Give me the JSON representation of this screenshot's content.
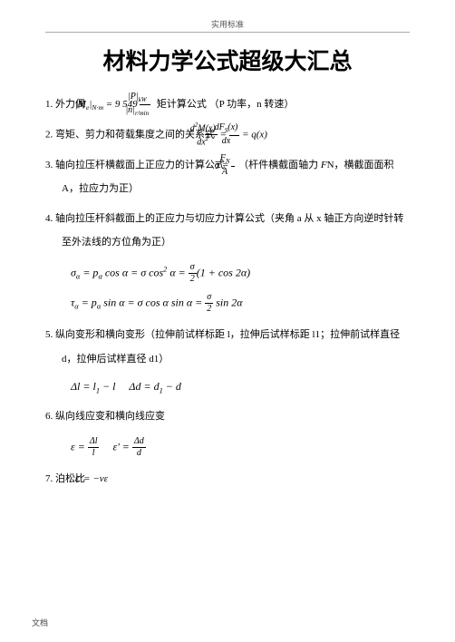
{
  "header": "实用标准",
  "title": "材料力学公式超级大汇总",
  "footer": "文档",
  "items": [
    {
      "num": "1.",
      "pre": "外力偶",
      "formula": "|M<sub>e</sub>|<sub>N·m</sub> = 9 549 <span class='frac'><span class='n'>|P|<sub>kW</sub></span><span class='d'>|n|<sub>r/min</sub></span></span>",
      "post": " 矩计算公式 （P 功率，n 转速）"
    },
    {
      "num": "2.",
      "pre": "弯矩、剪力和荷载集度之间的关系式",
      "formula": "<span class='frac'><span class='n'>d<sup>2</sup>M(x)</span><span class='d'>dx<sup>2</sup></span></span> = <span class='frac'><span class='n'>dF<sub>S</sub>(x)</span><span class='d'>dx</span></span> = q(x)",
      "post": ""
    },
    {
      "num": "3.",
      "pre": "轴向拉压杆横截面上正应力的计算公式",
      "formula": "σ = <span class='frac'><span class='n'>F<sub>N</sub></span><span class='d'>A</span></span>",
      "post": "（杆件横截面轴力 <i>F</i>N，横截面面积 A，拉应力为正）"
    },
    {
      "num": "4.",
      "pre": "轴向拉压杆斜截面上的正应力与切应力计算公式（夹角 a 从 x 轴正方向逆时针转至外法线的方位角为正）",
      "formula": "",
      "post": "",
      "blocks": [
        "σ<sub>α</sub> = p<sub>α</sub> cos α = σ cos<sup>2</sup> α = <span class='frac'><span class='n'>σ</span><span class='d'>2</span></span>(1 + cos 2α)",
        "τ<sub>α</sub> = p<sub>α</sub> sin α = σ cos α sin α = <span class='frac'><span class='n'>σ</span><span class='d'>2</span></span> sin 2α"
      ]
    },
    {
      "num": "5.",
      "pre": "纵向变形和横向变形（拉伸前试样标距 l，拉伸后试样标距 l1；拉伸前试样直径 d，拉伸后试样直径 d1）",
      "formula": "",
      "post": "",
      "blocks": [
        "Δl = l<sub>1</sub> − l &nbsp;&nbsp;&nbsp; Δd = d<sub>1</sub> − d"
      ]
    },
    {
      "num": "6.",
      "pre": "纵向线应变和横向线应变",
      "formula": "",
      "post": "",
      "blocks": [
        "ε = <span class='frac'><span class='n'>Δl</span><span class='d'>l</span></span> &nbsp;&nbsp;&nbsp; ε' = <span class='frac'><span class='n'>Δd</span><span class='d'>d</span></span>"
      ]
    },
    {
      "num": "7.",
      "pre": "泊松比",
      "formula": "ε' = −νε",
      "post": ""
    }
  ]
}
